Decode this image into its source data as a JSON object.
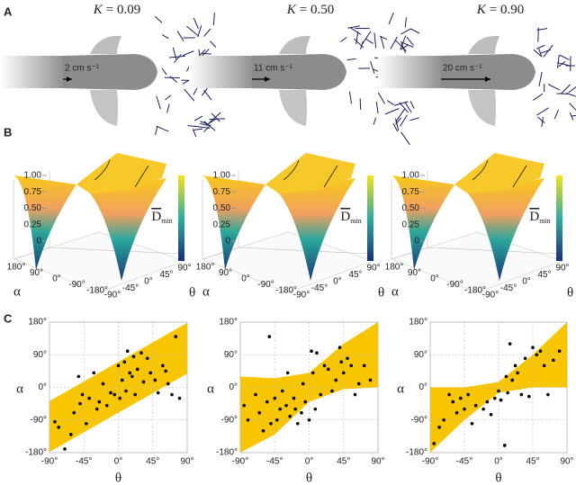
{
  "panel_labels": [
    "A",
    "B",
    "C"
  ],
  "panel_a": {
    "symbol": "K",
    "titles": [
      "= 0.09",
      "= 0.50",
      "= 0.90"
    ],
    "speeds": [
      "2 cm s⁻¹",
      "11 cm s⁻¹",
      "20 cm s⁻¹"
    ]
  },
  "panel_b": {
    "zlabel": "D",
    "zlabel_sub": "min",
    "alpha_label": "α",
    "theta_label": "θ",
    "zticks": [
      {
        "value": 0,
        "label": "0"
      },
      {
        "value": 0.25,
        "label": "0.25"
      },
      {
        "value": 0.5,
        "label": "0.50"
      },
      {
        "value": 0.75,
        "label": "0.75"
      },
      {
        "value": 1,
        "label": "1.00"
      }
    ],
    "alpha_ticks": [
      {
        "value": 180,
        "label": "180°"
      },
      {
        "value": 90,
        "label": "90°"
      },
      {
        "value": 0,
        "label": "0°"
      },
      {
        "value": -90,
        "label": "-90°"
      },
      {
        "value": -180,
        "label": "-180°"
      }
    ],
    "theta_ticks": [
      {
        "value": -90,
        "label": "-90°"
      },
      {
        "value": -45,
        "label": "-45°"
      },
      {
        "value": 0,
        "label": "0°"
      },
      {
        "value": 45,
        "label": "45°"
      },
      {
        "value": 90,
        "label": "90°"
      }
    ]
  },
  "chart_data": [
    {
      "type": "scatter",
      "xlabel": "θ",
      "ylabel": "α",
      "color": "#000000",
      "band_color": "#f7c600",
      "grid": true,
      "x": [
        -83,
        -78,
        -70,
        -62,
        -58,
        -52,
        -50,
        -47,
        -42,
        -38,
        -32,
        -28,
        -25,
        -20,
        -15,
        -10,
        -5,
        0,
        2,
        5,
        8,
        10,
        12,
        15,
        18,
        20,
        22,
        25,
        30,
        33,
        38,
        42,
        48,
        52,
        58,
        62,
        65,
        70,
        75,
        80
      ],
      "values": [
        -95,
        -110,
        -170,
        -130,
        -70,
        30,
        -45,
        -20,
        -100,
        -30,
        40,
        -60,
        -40,
        10,
        -50,
        -15,
        -20,
        60,
        -30,
        20,
        70,
        -10,
        100,
        40,
        30,
        85,
        -20,
        50,
        95,
        15,
        80,
        40,
        20,
        -15,
        60,
        45,
        10,
        -20,
        140,
        -30
      ],
      "band": {
        "x": [
          -90,
          -45,
          0,
          45,
          90
        ],
        "upper": [
          -38,
          16,
          70,
          124,
          178
        ],
        "lower": [
          -178,
          -124,
          -70,
          -16,
          38
        ]
      },
      "xlim": [
        -90,
        90
      ],
      "ylim": [
        -180,
        180
      ],
      "xticks": [
        {
          "value": -90,
          "label": "-90°"
        },
        {
          "value": -45,
          "label": "-45°"
        },
        {
          "value": 0,
          "label": "0°"
        },
        {
          "value": 45,
          "label": "45°"
        },
        {
          "value": 90,
          "label": "90°"
        }
      ],
      "yticks": [
        {
          "value": 180,
          "label": "180°"
        },
        {
          "value": 90,
          "label": "90°"
        },
        {
          "value": 0,
          "label": "0°"
        },
        {
          "value": -90,
          "label": "-90°"
        },
        {
          "value": -180,
          "label": "-180°"
        }
      ]
    },
    {
      "type": "scatter",
      "xlabel": "θ",
      "ylabel": "α",
      "color": "#000000",
      "band_color": "#f7c600",
      "grid": true,
      "x": [
        -85,
        -80,
        -70,
        -65,
        -60,
        -55,
        -52,
        -50,
        -45,
        -42,
        -38,
        -35,
        -30,
        -28,
        -25,
        -20,
        -18,
        -15,
        -10,
        -8,
        -5,
        0,
        3,
        5,
        8,
        10,
        15,
        20,
        25,
        30,
        35,
        40,
        42,
        45,
        50,
        55,
        60,
        65,
        72,
        80
      ],
      "values": [
        -50,
        -90,
        -20,
        -70,
        -120,
        -40,
        140,
        -100,
        -30,
        -90,
        -60,
        -10,
        -50,
        40,
        -80,
        -30,
        -60,
        -100,
        -70,
        10,
        -40,
        -90,
        100,
        40,
        -60,
        95,
        -20,
        60,
        50,
        -10,
        20,
        110,
        70,
        40,
        80,
        60,
        -20,
        10,
        60,
        20
      ],
      "band": {
        "x": [
          -90,
          -45,
          0,
          45,
          90
        ],
        "upper": [
          30,
          25,
          40,
          120,
          180
        ],
        "lower": [
          -180,
          -130,
          -40,
          -5,
          0
        ]
      },
      "xlim": [
        -90,
        90
      ],
      "ylim": [
        -180,
        180
      ],
      "xticks": [
        {
          "value": -90,
          "label": "-90°"
        },
        {
          "value": -45,
          "label": "-45°"
        },
        {
          "value": 0,
          "label": "0°"
        },
        {
          "value": 45,
          "label": "45°"
        },
        {
          "value": 90,
          "label": "90°"
        }
      ],
      "yticks": [
        {
          "value": 180,
          "label": "180°"
        },
        {
          "value": 90,
          "label": "90°"
        },
        {
          "value": 0,
          "label": "0°"
        },
        {
          "value": -90,
          "label": "-90°"
        },
        {
          "value": -180,
          "label": "-180°"
        }
      ]
    },
    {
      "type": "scatter",
      "xlabel": "θ",
      "ylabel": "α",
      "color": "#000000",
      "band_color": "#f7c600",
      "grid": true,
      "x": [
        -85,
        -78,
        -72,
        -65,
        -60,
        -55,
        -50,
        -45,
        -40,
        -35,
        -30,
        -20,
        -15,
        -10,
        -5,
        0,
        3,
        8,
        10,
        12,
        15,
        18,
        22,
        25,
        30,
        35,
        40,
        45,
        50,
        55,
        60,
        65,
        72,
        80
      ],
      "values": [
        -155,
        -110,
        -90,
        -20,
        -40,
        -70,
        -30,
        -60,
        -20,
        -100,
        -50,
        -60,
        -40,
        -75,
        -30,
        -10,
        -35,
        -160,
        30,
        -15,
        120,
        20,
        60,
        40,
        -20,
        80,
        -25,
        110,
        90,
        100,
        60,
        -20,
        75,
        100
      ],
      "band": {
        "x": [
          -90,
          -45,
          0,
          45,
          90
        ],
        "upper": [
          0,
          0,
          15,
          90,
          180
        ],
        "lower": [
          -180,
          -90,
          -15,
          0,
          0
        ]
      },
      "xlim": [
        -90,
        90
      ],
      "ylim": [
        -180,
        180
      ],
      "xticks": [
        {
          "value": -90,
          "label": "-90°"
        },
        {
          "value": -45,
          "label": "-45°"
        },
        {
          "value": 0,
          "label": "0°"
        },
        {
          "value": 45,
          "label": "45°"
        },
        {
          "value": 90,
          "label": "90°"
        }
      ],
      "yticks": [
        {
          "value": 180,
          "label": "180°"
        },
        {
          "value": 90,
          "label": "90°"
        },
        {
          "value": 0,
          "label": "0°"
        },
        {
          "value": -90,
          "label": "-90°"
        },
        {
          "value": -180,
          "label": "-180°"
        }
      ]
    }
  ]
}
